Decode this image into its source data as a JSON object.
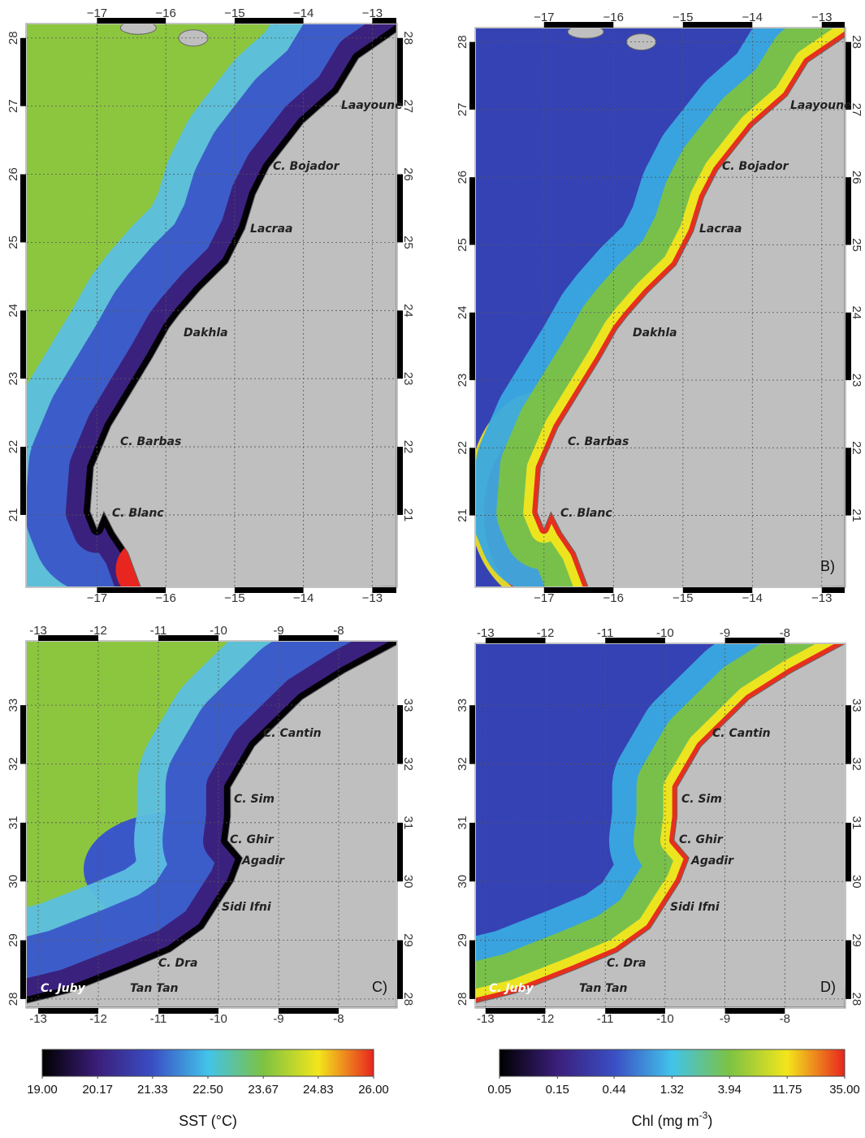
{
  "panels": [
    {
      "lon_range": [
        -18.02,
        -12.65
      ],
      "lat_range": [
        19.95,
        28.2
      ],
      "lon_ticks": [
        {
          "value": -17,
          "label": "−17"
        },
        {
          "value": -16,
          "label": "−16"
        },
        {
          "value": -15,
          "label": "−15"
        },
        {
          "value": -14,
          "label": "−14"
        },
        {
          "value": -13,
          "label": "−13"
        }
      ],
      "lat_ticks": [
        21,
        22,
        23,
        24,
        25,
        26,
        27,
        28
      ],
      "places": [
        "Laayoune",
        "C. Bojador",
        "Lacraa",
        "Dakhla",
        "C. Barbas",
        "C. Blanc"
      ]
    },
    {
      "lon_range": [
        -17.98,
        -12.67
      ],
      "lat_range": [
        19.95,
        28.2
      ],
      "lon_ticks": [
        {
          "value": -17,
          "label": "−17"
        },
        {
          "value": -16,
          "label": "−16"
        },
        {
          "value": -15,
          "label": "−15"
        },
        {
          "value": -14,
          "label": "−14"
        },
        {
          "value": -13,
          "label": "−13"
        }
      ],
      "lat_ticks": [
        21,
        22,
        23,
        24,
        25,
        26,
        27,
        28
      ],
      "places": [
        "Laayoune",
        "C. Bojador",
        "Lacraa",
        "Dakhla",
        "C. Barbas",
        "C. Blanc"
      ],
      "label": "B)"
    },
    {
      "lon_range": [
        -13.19,
        -7.04
      ],
      "lat_range": [
        27.86,
        34.08
      ],
      "lon_ticks": [
        {
          "value": -13,
          "label": "-13"
        },
        {
          "value": -12,
          "label": "-12"
        },
        {
          "value": -11,
          "label": "-11"
        },
        {
          "value": -10,
          "label": "-10"
        },
        {
          "value": -9,
          "label": "-9"
        },
        {
          "value": -8,
          "label": "-8"
        }
      ],
      "lat_ticks": [
        28,
        29,
        30,
        31,
        32,
        33
      ],
      "places": [
        "C. Cantin",
        "C. Sim",
        "C. Ghir",
        "Agadir",
        "Sidi Ifni",
        "C. Dra",
        "C. Juby",
        "Tan Tan"
      ],
      "label": "C)"
    },
    {
      "lon_range": [
        -13.16,
        -7.0
      ],
      "lat_range": [
        27.86,
        34.04
      ],
      "lon_ticks": [
        {
          "value": -13,
          "label": "-13"
        },
        {
          "value": -12,
          "label": "-12"
        },
        {
          "value": -11,
          "label": "-11"
        },
        {
          "value": -10,
          "label": "-10"
        },
        {
          "value": -9,
          "label": "-9"
        },
        {
          "value": -8,
          "label": "-8"
        }
      ],
      "lat_ticks": [
        28,
        29,
        30,
        31,
        32,
        33
      ],
      "places": [
        "C. Cantin",
        "C. Sim",
        "C. Ghir",
        "Agadir",
        "Sidi Ifni",
        "C. Dra",
        "C. Juby",
        "Tan Tan"
      ],
      "label": "D)"
    }
  ],
  "colorbars": [
    {
      "range": [
        19,
        26
      ],
      "log": false,
      "colors": [
        "#000000",
        "#3b1e7a",
        "#3a4fc4",
        "#42c3ea",
        "#7cc242",
        "#f2e61c",
        "#e8251f"
      ],
      "ticks": [
        {
          "value": 19,
          "label": "19.00"
        },
        20.17,
        21.33,
        {
          "value": 22.5,
          "label": "22.50"
        },
        23.67,
        24.83,
        {
          "value": 26,
          "label": "26.00"
        }
      ],
      "title": "SST (°C)"
    },
    {
      "range": [
        0.05,
        35
      ],
      "log": true,
      "colors": [
        "#000000",
        "#3b1e7a",
        "#3a4fc4",
        "#42c3ea",
        "#7cc242",
        "#f2e61c",
        "#e8251f"
      ],
      "ticks": [
        0.05,
        0.15,
        0.44,
        1.32,
        3.94,
        11.75,
        {
          "value": 35,
          "label": "35.00"
        }
      ],
      "title": "Chl (mg m",
      "title_sup": "-3",
      "title_end": ")"
    }
  ]
}
